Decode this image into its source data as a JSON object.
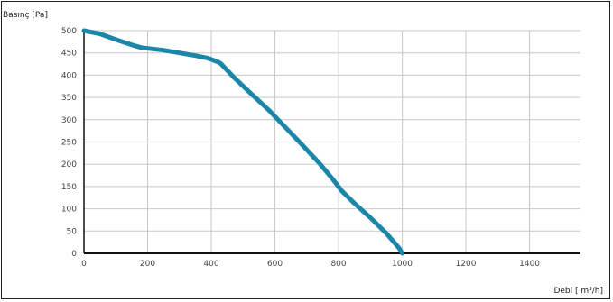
{
  "chart_data": {
    "type": "line",
    "ylabel": "Basınç [Pa]",
    "xlabel": "Debi [ m³/h]",
    "xlim": [
      0,
      1560
    ],
    "ylim": [
      0,
      500
    ],
    "xticks": [
      0,
      200,
      400,
      600,
      800,
      1000,
      1200,
      1400
    ],
    "yticks": [
      0,
      50,
      100,
      150,
      200,
      250,
      300,
      350,
      400,
      450,
      500
    ],
    "grid": true,
    "series": [
      {
        "color": "#1b86a8",
        "x": [
          0,
          50,
          100,
          150,
          180,
          250,
          300,
          350,
          390,
          420,
          430,
          470,
          520,
          580,
          630,
          680,
          740,
          780,
          810,
          850,
          900,
          950,
          990,
          1000
        ],
        "y": [
          500,
          493,
          480,
          468,
          462,
          456,
          450,
          444,
          438,
          430,
          426,
          396,
          362,
          322,
          285,
          248,
          202,
          168,
          140,
          112,
          80,
          45,
          12,
          0
        ]
      }
    ]
  }
}
